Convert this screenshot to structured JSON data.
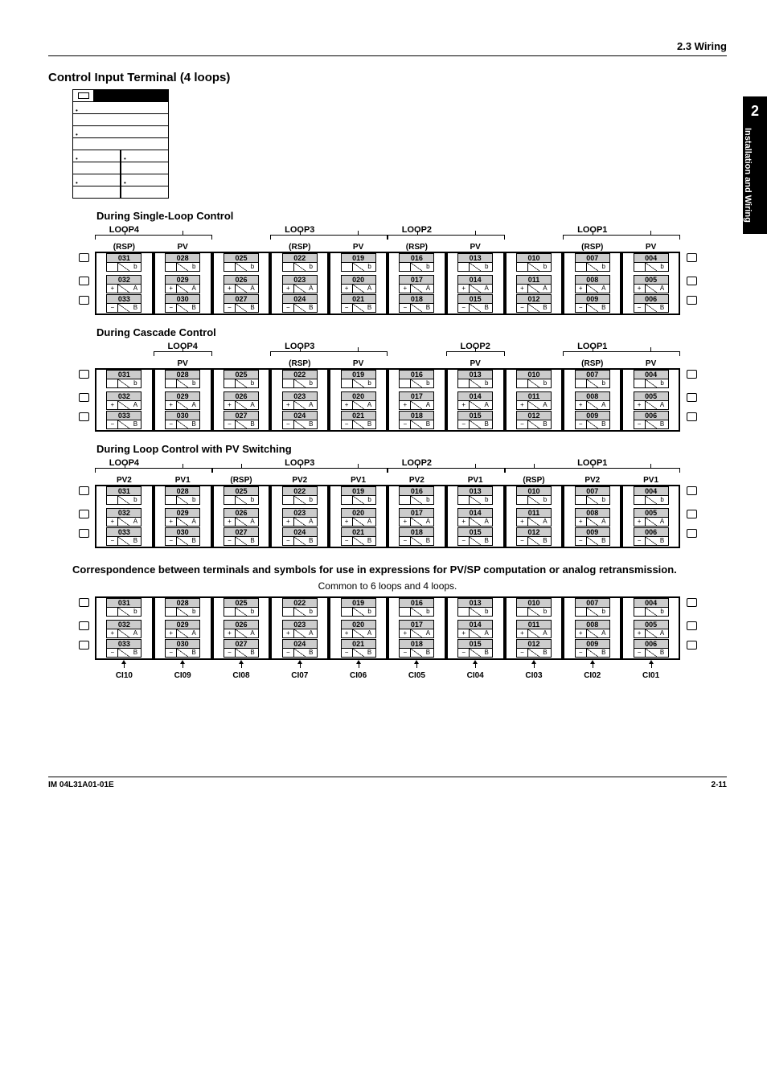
{
  "header": {
    "section": "2.3  Wiring"
  },
  "sidetab": {
    "num": "2",
    "text": "Installation and Wiring"
  },
  "title": "Control Input Terminal (4 loops)",
  "sections": [
    {
      "heading": "During Single-Loop Control"
    },
    {
      "heading": "During Cascade Control"
    },
    {
      "heading": "During Loop Control with PV Switching"
    }
  ],
  "note": "Correspondence between terminals and symbols for use in expressions for PV/SP computation or analog retransmission.",
  "note2": "Common to 6 loops and 4 loops.",
  "loops": [
    "LOOP4",
    "LOOP3",
    "LOOP2",
    "LOOP1"
  ],
  "diag1_cols": [
    "(RSP)",
    "PV",
    "",
    "(RSP)",
    "PV",
    "(RSP)",
    "PV",
    "",
    "(RSP)",
    "PV"
  ],
  "diag2_cols": [
    "",
    "PV",
    "",
    "(RSP)",
    "PV",
    "",
    "PV",
    "",
    "(RSP)",
    "PV"
  ],
  "diag3_cols": [
    "PV2",
    "PV1",
    "(RSP)",
    "PV2",
    "PV1",
    "PV2",
    "PV1",
    "(RSP)",
    "PV2",
    "PV1"
  ],
  "terminals": {
    "nums": [
      [
        "031",
        "028",
        "025",
        "022",
        "019",
        "016",
        "013",
        "010",
        "007",
        "004"
      ],
      [
        "032",
        "029",
        "026",
        "023",
        "020",
        "017",
        "014",
        "011",
        "008",
        "005"
      ],
      [
        "033",
        "030",
        "027",
        "024",
        "021",
        "018",
        "015",
        "012",
        "009",
        "006"
      ]
    ],
    "signs": [
      "",
      "+",
      "−"
    ],
    "letters": [
      "b",
      "A",
      "B"
    ]
  },
  "ci_labels": [
    "CI10",
    "CI09",
    "CI08",
    "CI07",
    "CI06",
    "CI05",
    "CI04",
    "CI03",
    "CI02",
    "CI01"
  ],
  "footer": {
    "left": "IM 04L31A01-01E",
    "right": "2-11"
  },
  "colors": {
    "bg": "#ffffff",
    "text": "#000000",
    "shade": "#cccccc"
  }
}
